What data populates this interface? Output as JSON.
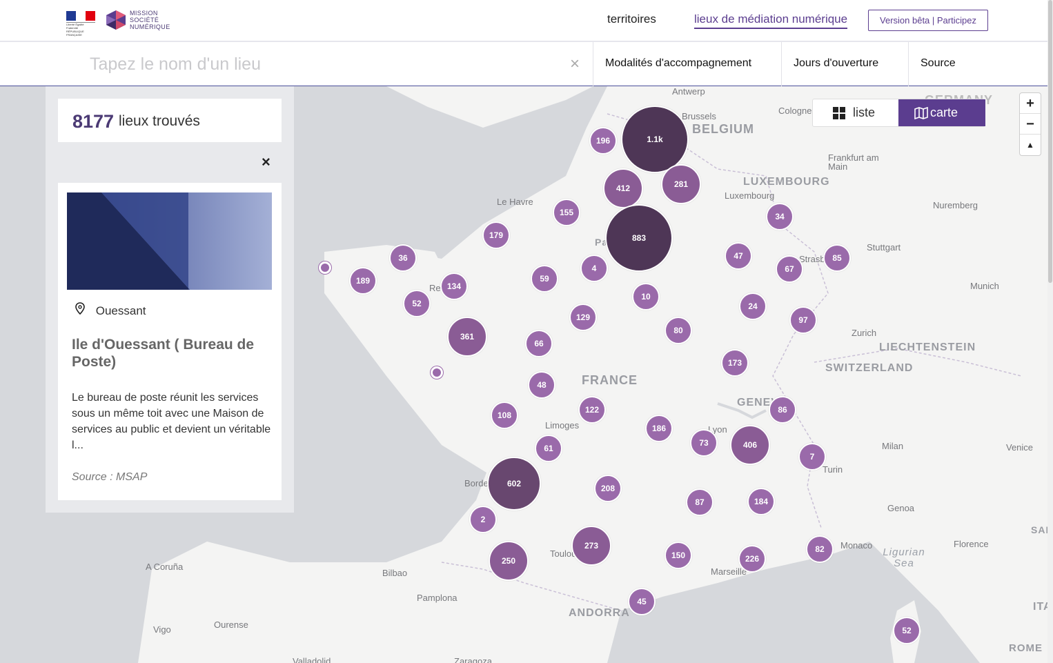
{
  "header": {
    "logo_rf_text": "Liberté Égalité Fraternité RÉPUBLIQUE FRANÇAISE",
    "logo_msn_lines": [
      "MISSION",
      "SOCIÉTÉ",
      "NUMÉRIQUE"
    ],
    "nav": [
      {
        "label": "territoires",
        "active": false
      },
      {
        "label": "lieux de médiation numérique",
        "active": true
      }
    ],
    "beta_button": "Version bêta | Participez"
  },
  "search": {
    "placeholder": "Tapez le nom d'un lieu",
    "value": "",
    "clear_icon": "×"
  },
  "filters": [
    {
      "label": "Modalités d'accompagnement"
    },
    {
      "label": "Jours d'ouverture"
    },
    {
      "label": "Source"
    }
  ],
  "view_toggle": {
    "options": [
      {
        "label": "liste",
        "icon": "grid-icon",
        "active": false
      },
      {
        "label": "carte",
        "icon": "map-icon",
        "active": true
      }
    ]
  },
  "zoom": {
    "in": "+",
    "out": "−",
    "reset": "▲"
  },
  "results": {
    "count": "8177",
    "label": "lieux trouvés",
    "close_icon": "×"
  },
  "selected_place": {
    "location": "Ouessant",
    "title": "Ile d'Ouessant ( Bureau de Poste)",
    "description": "Le bureau de poste réunit les services sous un même toit avec une Maison de services au public et devient un véritable l...",
    "source": "Source : MSAP"
  },
  "map": {
    "places": [
      "Antwerp",
      "Brussels",
      "Cologne",
      "BELGIUM",
      "GERMANY",
      "LUXEMBOURG",
      "Luxembourg",
      "Frankfurt am Main",
      "Nuremberg",
      "Le Havre",
      "Stuttgart",
      "Strasbourg",
      "Munich",
      "Zurich",
      "LIECHTENSTEIN",
      "SWITZERLAND",
      "FRANCE",
      "GENEVA",
      "Lyon",
      "Limoges",
      "Milan",
      "Venice",
      "Turin",
      "Bordeaux",
      "Genoa",
      "Monaco",
      "Florence",
      "Ligurian Sea",
      "Toulouse",
      "Marseille",
      "A Coruña",
      "Bilbao",
      "Pamplona",
      "ANDORRA",
      "Vigo",
      "Ourense",
      "Valladolid",
      "Zaragoza",
      "ROME",
      "ITA",
      "SAN MARINO",
      "Paris",
      "Rennes"
    ],
    "clusters": [
      "1.1k",
      "196",
      "412",
      "281",
      "155",
      "883",
      "179",
      "34",
      "36",
      "189",
      "134",
      "52",
      "59",
      "4",
      "47",
      "67",
      "85",
      "10",
      "24",
      "97",
      "129",
      "80",
      "361",
      "66",
      "173",
      "48",
      "122",
      "86",
      "108",
      "186",
      "73",
      "406",
      "7",
      "61",
      "602",
      "208",
      "87",
      "184",
      "2",
      "273",
      "150",
      "226",
      "82",
      "250",
      "45",
      "52"
    ]
  }
}
